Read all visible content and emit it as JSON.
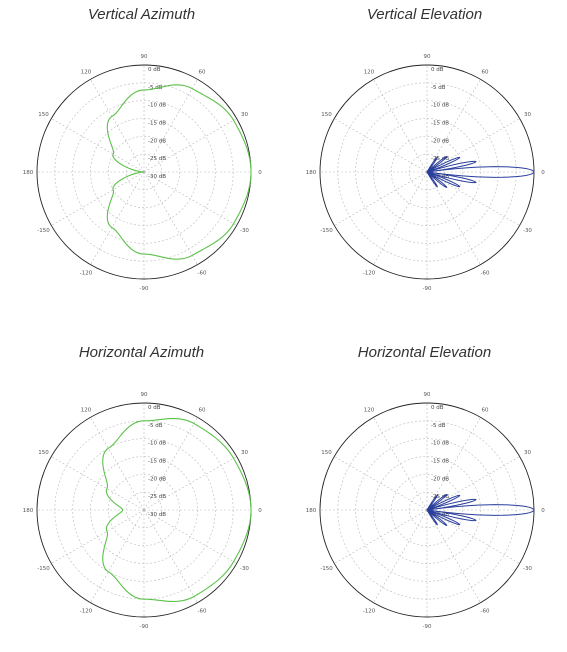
{
  "chart_data": [
    {
      "type": "polar",
      "title": "Vertical Azimuth",
      "color": "#5cc24a",
      "pattern": "cardioid",
      "angle_labels": [
        "0",
        "30",
        "60",
        "90",
        "120",
        "150",
        "180",
        "-150",
        "-120",
        "-90",
        "-60",
        "-30"
      ],
      "ring_labels": [
        "0 dB",
        "-5 dB",
        "-10 dB",
        "-15 dB",
        "-20 dB",
        "-25 dB",
        "-30 dB"
      ],
      "rlim": [
        -30,
        0
      ],
      "gain_db": {
        "angles_deg": [
          0,
          30,
          60,
          90,
          120,
          150,
          180,
          -150,
          -120,
          -90,
          -60,
          -30
        ],
        "values": [
          0,
          -1,
          -3,
          -7,
          -12,
          -20,
          -30,
          -20,
          -12,
          -7,
          -3,
          -1
        ]
      }
    },
    {
      "type": "polar",
      "title": "Vertical Elevation",
      "color": "#2a3e9c",
      "pattern": "lobes",
      "angle_labels": [
        "0",
        "30",
        "60",
        "90",
        "120",
        "150",
        "180",
        "-150",
        "-120",
        "-90",
        "-60",
        "-30"
      ],
      "ring_labels": [
        "0 dB",
        "-5 dB",
        "-10 dB",
        "-15 dB",
        "-20 dB",
        "-25 dB",
        "-30 dB"
      ],
      "rlim": [
        -30,
        0
      ],
      "main_lobe": {
        "angle_deg": 0,
        "gain_db": 0,
        "beamwidth_deg": 8
      },
      "side_lobes": [
        {
          "angle_deg": 12,
          "gain_db": -16
        },
        {
          "angle_deg": -12,
          "gain_db": -16
        },
        {
          "angle_deg": 24,
          "gain_db": -20
        },
        {
          "angle_deg": -24,
          "gain_db": -20
        },
        {
          "angle_deg": 38,
          "gain_db": -23
        },
        {
          "angle_deg": -38,
          "gain_db": -23
        },
        {
          "angle_deg": 55,
          "gain_db": -25
        },
        {
          "angle_deg": -55,
          "gain_db": -25
        }
      ]
    },
    {
      "type": "polar",
      "title": "Horizontal Azimuth",
      "color": "#5cc24a",
      "pattern": "cardioid",
      "angle_labels": [
        "0",
        "30",
        "60",
        "90",
        "120",
        "150",
        "180",
        "-150",
        "-120",
        "-90",
        "-60",
        "-30"
      ],
      "ring_labels": [
        "0 dB",
        "-5 dB",
        "-10 dB",
        "-15 dB",
        "-20 dB",
        "-25 dB",
        "-30 dB"
      ],
      "rlim": [
        -30,
        0
      ],
      "gain_db": {
        "angles_deg": [
          0,
          30,
          60,
          90,
          120,
          150,
          180,
          -150,
          -120,
          -90,
          -60,
          -30
        ],
        "values": [
          0,
          -1,
          -2,
          -5,
          -10,
          -18,
          -24,
          -18,
          -10,
          -5,
          -2,
          -1
        ]
      }
    },
    {
      "type": "polar",
      "title": "Horizontal Elevation",
      "color": "#2a3e9c",
      "pattern": "lobes",
      "angle_labels": [
        "0",
        "30",
        "60",
        "90",
        "120",
        "150",
        "180",
        "-150",
        "-120",
        "-90",
        "-60",
        "-30"
      ],
      "ring_labels": [
        "0 dB",
        "-5 dB",
        "-10 dB",
        "-15 dB",
        "-20 dB",
        "-25 dB",
        "-30 dB"
      ],
      "rlim": [
        -30,
        0
      ],
      "main_lobe": {
        "angle_deg": 0,
        "gain_db": 0,
        "beamwidth_deg": 8
      },
      "side_lobes": [
        {
          "angle_deg": 12,
          "gain_db": -16
        },
        {
          "angle_deg": -12,
          "gain_db": -16
        },
        {
          "angle_deg": 24,
          "gain_db": -20
        },
        {
          "angle_deg": -24,
          "gain_db": -20
        },
        {
          "angle_deg": 38,
          "gain_db": -23
        },
        {
          "angle_deg": -38,
          "gain_db": -23
        },
        {
          "angle_deg": 55,
          "gain_db": -25
        },
        {
          "angle_deg": -55,
          "gain_db": -25
        }
      ]
    }
  ]
}
